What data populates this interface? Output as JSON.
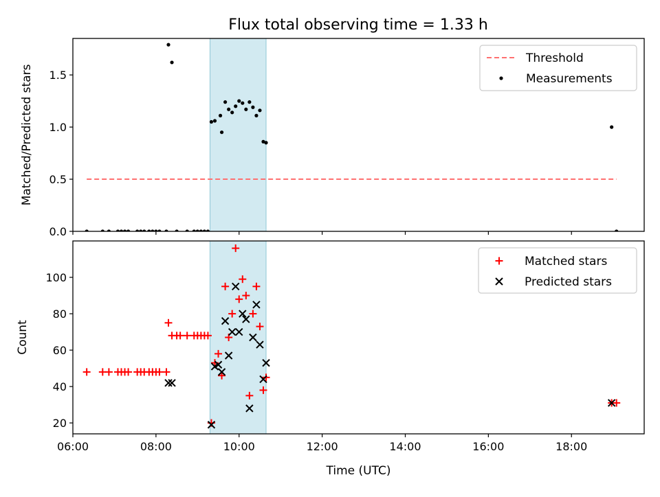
{
  "figure": {
    "title": "Flux total observing time = 1.33 h"
  },
  "colors": {
    "threshold": "#ff7070",
    "span": "#add8e6",
    "matched": "#ff0000",
    "predicted": "#000000",
    "measurement": "#000000"
  },
  "chart_data": [
    {
      "type": "scatter",
      "title": "Flux total observing time = 1.33 h",
      "xlabel": "",
      "ylabel": "Matched/Predicted stars",
      "xlim": [
        "06:00",
        "19:45"
      ],
      "ylim": [
        0,
        1.85
      ],
      "y_ticks": [
        "0.0",
        "0.5",
        "1.0",
        "1.5"
      ],
      "shaded_interval": [
        "09:18",
        "10:39"
      ],
      "legend_position": "upper right",
      "threshold": {
        "name": "Threshold",
        "style": "dashed",
        "x": [
          "06:20",
          "19:05"
        ],
        "y": 0.5
      },
      "series": [
        {
          "name": "Measurements",
          "points": [
            [
              "06:20",
              0
            ],
            [
              "06:43",
              0
            ],
            [
              "06:52",
              0
            ],
            [
              "07:05",
              0
            ],
            [
              "07:10",
              0
            ],
            [
              "07:15",
              0
            ],
            [
              "07:20",
              0
            ],
            [
              "07:33",
              0
            ],
            [
              "07:38",
              0
            ],
            [
              "07:43",
              0
            ],
            [
              "07:50",
              0
            ],
            [
              "07:55",
              0
            ],
            [
              "08:00",
              0
            ],
            [
              "08:05",
              0
            ],
            [
              "08:15",
              0
            ],
            [
              "08:18",
              1.79
            ],
            [
              "08:23",
              1.62
            ],
            [
              "08:30",
              0
            ],
            [
              "08:45",
              0
            ],
            [
              "08:55",
              0
            ],
            [
              "09:00",
              0
            ],
            [
              "09:05",
              0
            ],
            [
              "09:10",
              0
            ],
            [
              "09:15",
              0
            ],
            [
              "09:20",
              1.05
            ],
            [
              "09:25",
              1.06
            ],
            [
              "09:33",
              1.11
            ],
            [
              "09:35",
              0.95
            ],
            [
              "09:40",
              1.24
            ],
            [
              "09:45",
              1.17
            ],
            [
              "09:50",
              1.14
            ],
            [
              "09:55",
              1.2
            ],
            [
              "10:00",
              1.25
            ],
            [
              "10:05",
              1.23
            ],
            [
              "10:10",
              1.17
            ],
            [
              "10:15",
              1.24
            ],
            [
              "10:20",
              1.19
            ],
            [
              "10:25",
              1.11
            ],
            [
              "10:30",
              1.16
            ],
            [
              "10:35",
              0.86
            ],
            [
              "10:39",
              0.85
            ],
            [
              "18:58",
              1.0
            ],
            [
              "19:05",
              0
            ]
          ]
        }
      ]
    },
    {
      "type": "scatter",
      "xlabel": "Time (UTC)",
      "ylabel": "Count",
      "xlim": [
        "06:00",
        "19:45"
      ],
      "ylim": [
        14,
        120
      ],
      "x_ticks": [
        "06:00",
        "08:00",
        "10:00",
        "12:00",
        "14:00",
        "16:00",
        "18:00"
      ],
      "y_ticks": [
        "20",
        "40",
        "60",
        "80",
        "100"
      ],
      "shaded_interval": [
        "09:18",
        "10:39"
      ],
      "legend_position": "upper right",
      "series": [
        {
          "name": "Matched stars",
          "marker": "+",
          "points": [
            [
              "06:20",
              48
            ],
            [
              "06:43",
              48
            ],
            [
              "06:52",
              48
            ],
            [
              "07:05",
              48
            ],
            [
              "07:10",
              48
            ],
            [
              "07:15",
              48
            ],
            [
              "07:20",
              48
            ],
            [
              "07:33",
              48
            ],
            [
              "07:38",
              48
            ],
            [
              "07:43",
              48
            ],
            [
              "07:50",
              48
            ],
            [
              "07:55",
              48
            ],
            [
              "08:00",
              48
            ],
            [
              "08:05",
              48
            ],
            [
              "08:15",
              48
            ],
            [
              "08:18",
              75
            ],
            [
              "08:23",
              68
            ],
            [
              "08:30",
              68
            ],
            [
              "08:35",
              68
            ],
            [
              "08:45",
              68
            ],
            [
              "08:55",
              68
            ],
            [
              "09:00",
              68
            ],
            [
              "09:05",
              68
            ],
            [
              "09:10",
              68
            ],
            [
              "09:15",
              68
            ],
            [
              "09:20",
              20
            ],
            [
              "09:25",
              53
            ],
            [
              "09:30",
              58
            ],
            [
              "09:35",
              46
            ],
            [
              "09:40",
              95
            ],
            [
              "09:45",
              67
            ],
            [
              "09:50",
              80
            ],
            [
              "09:55",
              116
            ],
            [
              "10:00",
              88
            ],
            [
              "10:05",
              99
            ],
            [
              "10:10",
              90
            ],
            [
              "10:15",
              35
            ],
            [
              "10:20",
              80
            ],
            [
              "10:25",
              95
            ],
            [
              "10:30",
              73
            ],
            [
              "10:35",
              38
            ],
            [
              "10:39",
              45
            ],
            [
              "18:58",
              31
            ],
            [
              "19:05",
              31
            ]
          ]
        },
        {
          "name": "Predicted stars",
          "marker": "x",
          "points": [
            [
              "08:18",
              42
            ],
            [
              "08:23",
              42
            ],
            [
              "09:20",
              19
            ],
            [
              "09:25",
              51
            ],
            [
              "09:30",
              52
            ],
            [
              "09:35",
              48
            ],
            [
              "09:40",
              76
            ],
            [
              "09:45",
              57
            ],
            [
              "09:50",
              70
            ],
            [
              "09:55",
              95
            ],
            [
              "10:00",
              70
            ],
            [
              "10:05",
              80
            ],
            [
              "10:10",
              77
            ],
            [
              "10:15",
              28
            ],
            [
              "10:20",
              67
            ],
            [
              "10:25",
              85
            ],
            [
              "10:30",
              63
            ],
            [
              "10:35",
              44
            ],
            [
              "10:39",
              53
            ],
            [
              "18:58",
              31
            ]
          ]
        }
      ]
    }
  ]
}
